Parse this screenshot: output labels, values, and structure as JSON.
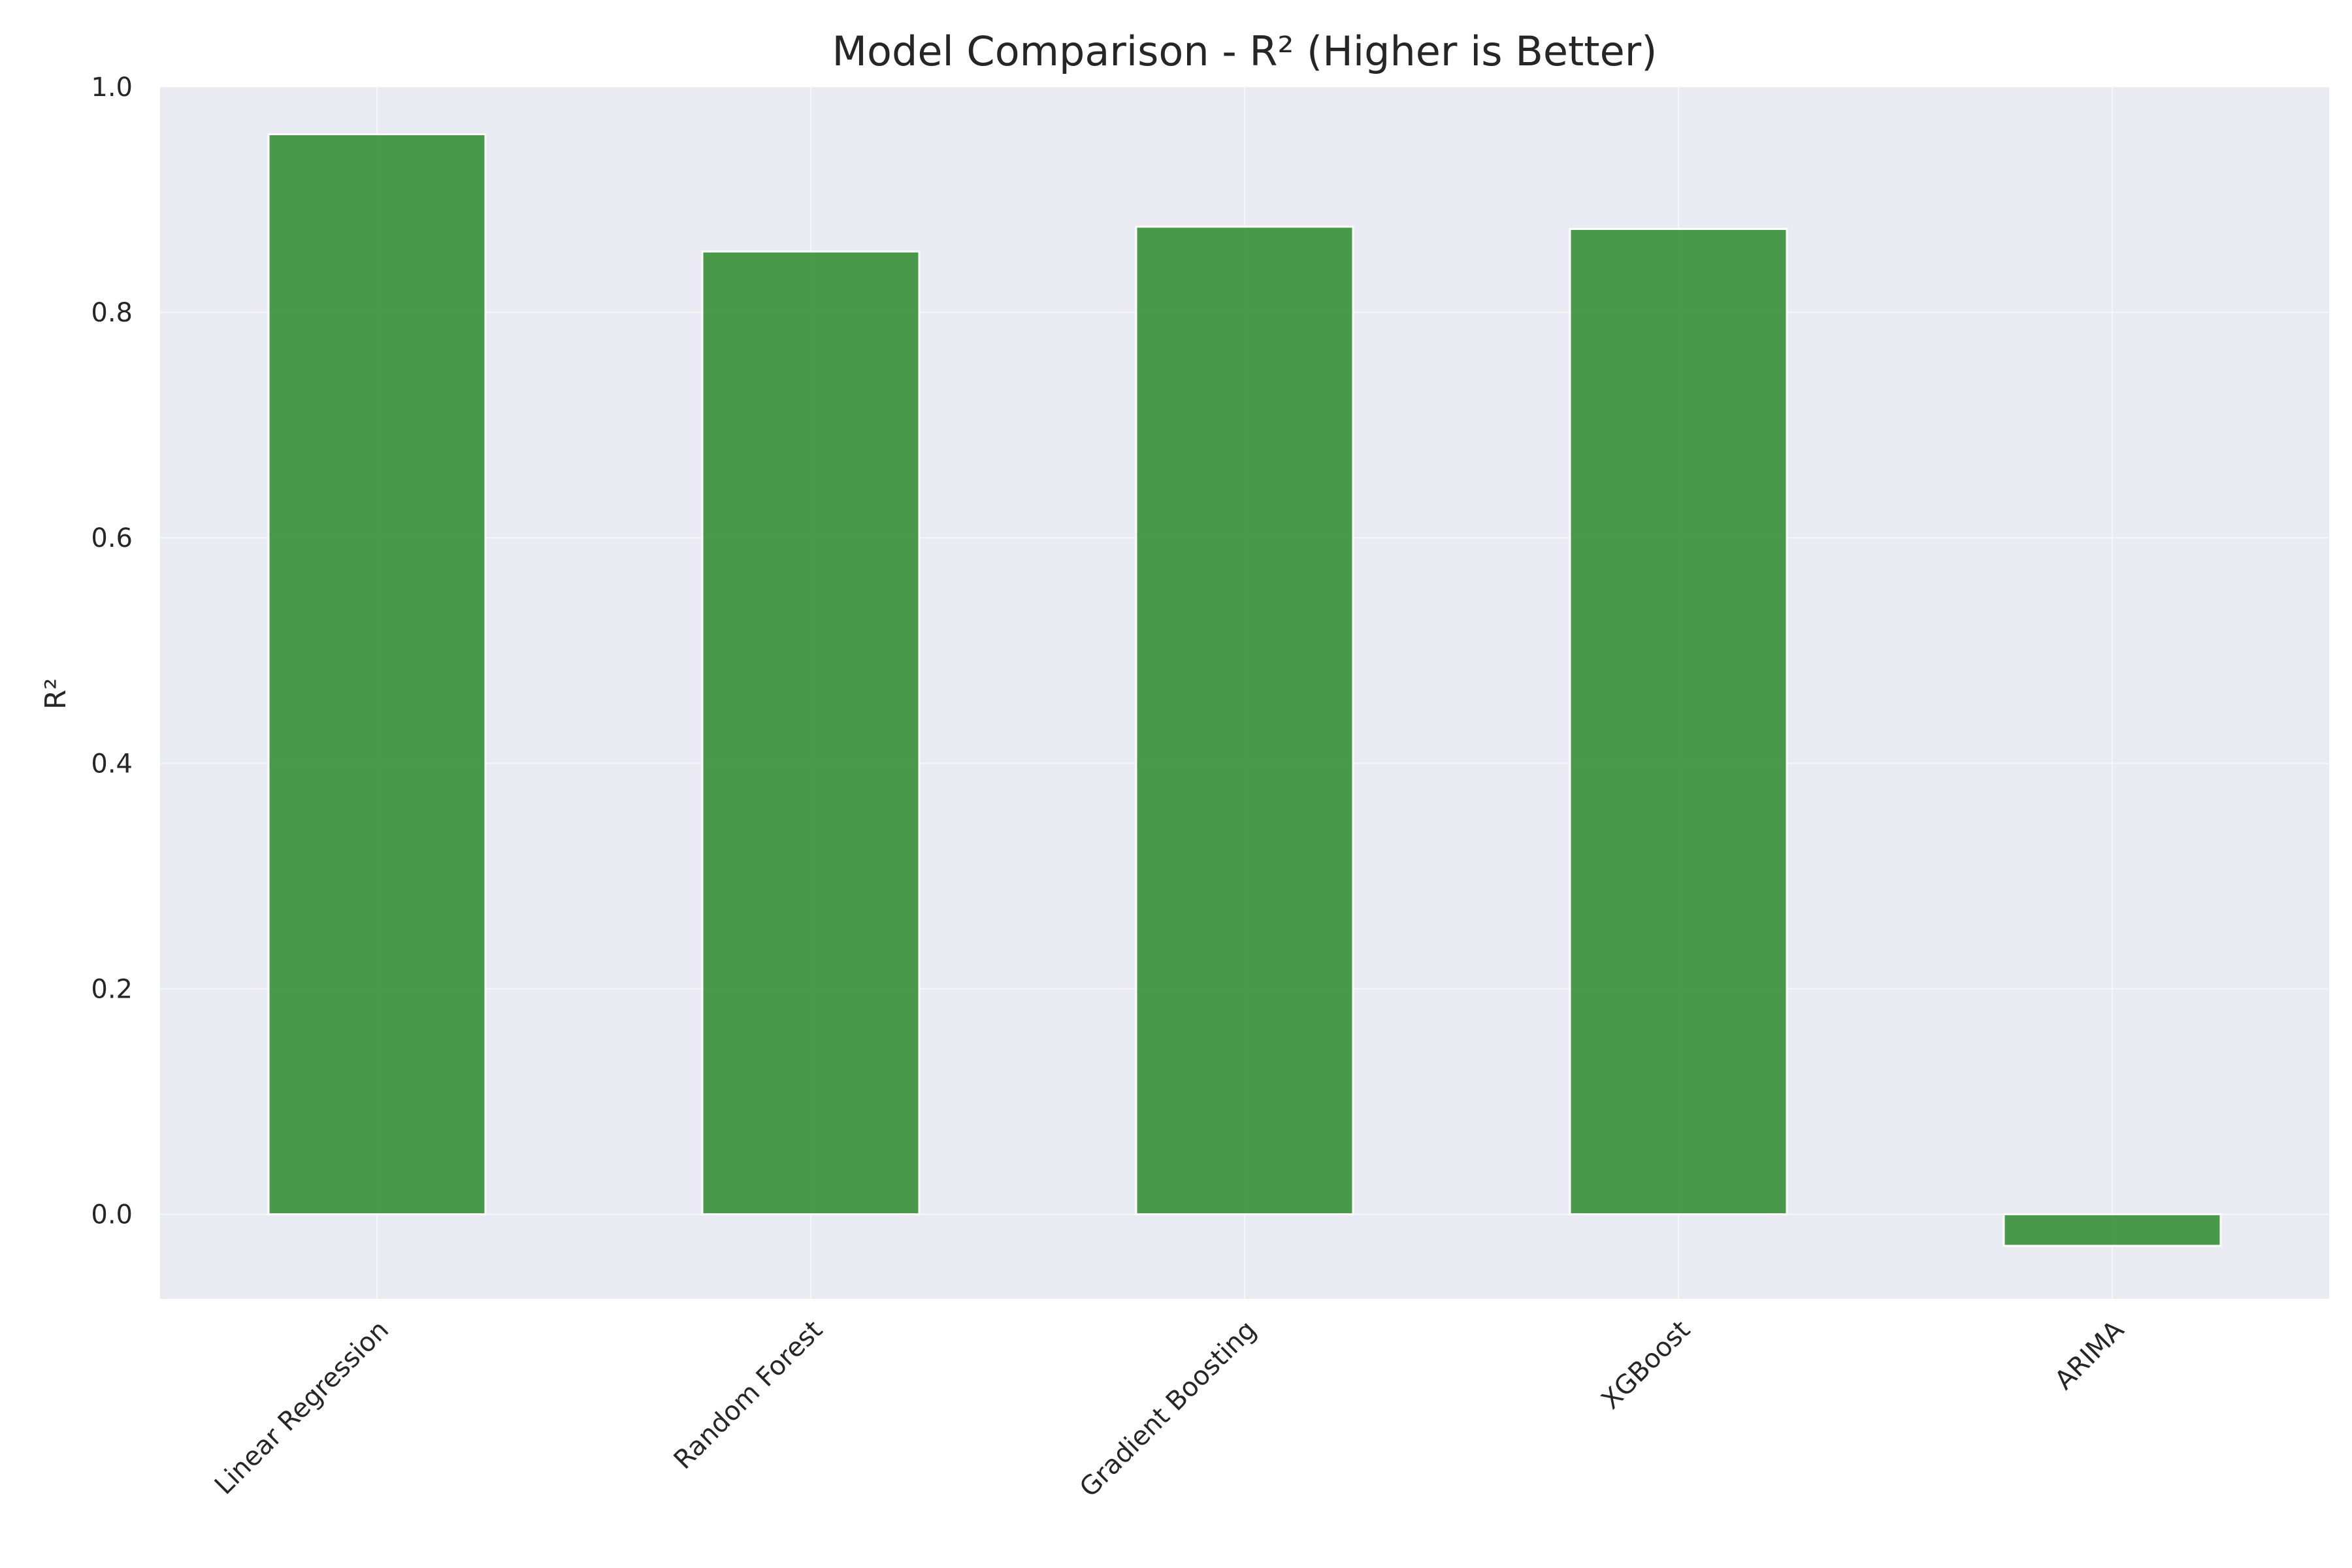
{
  "chart_data": {
    "type": "bar",
    "title": "Model Comparison - R² (Higher is Better)",
    "xlabel": "",
    "ylabel": "R²",
    "categories": [
      "Linear Regression",
      "Random Forest",
      "Gradient Boosting",
      "XGBoost",
      "ARIMA"
    ],
    "values": [
      0.958,
      0.854,
      0.876,
      0.874,
      -0.028
    ],
    "ylim": [
      -0.075,
      1.0
    ],
    "yticks": [
      0.0,
      0.2,
      0.4,
      0.6,
      0.8,
      1.0
    ],
    "ytick_labels": [
      "0.0",
      "0.2",
      "0.4",
      "0.6",
      "0.8",
      "1.0"
    ],
    "grid": true,
    "bar_color": "#2e8b2e",
    "background_color": "#eaeaf2"
  }
}
